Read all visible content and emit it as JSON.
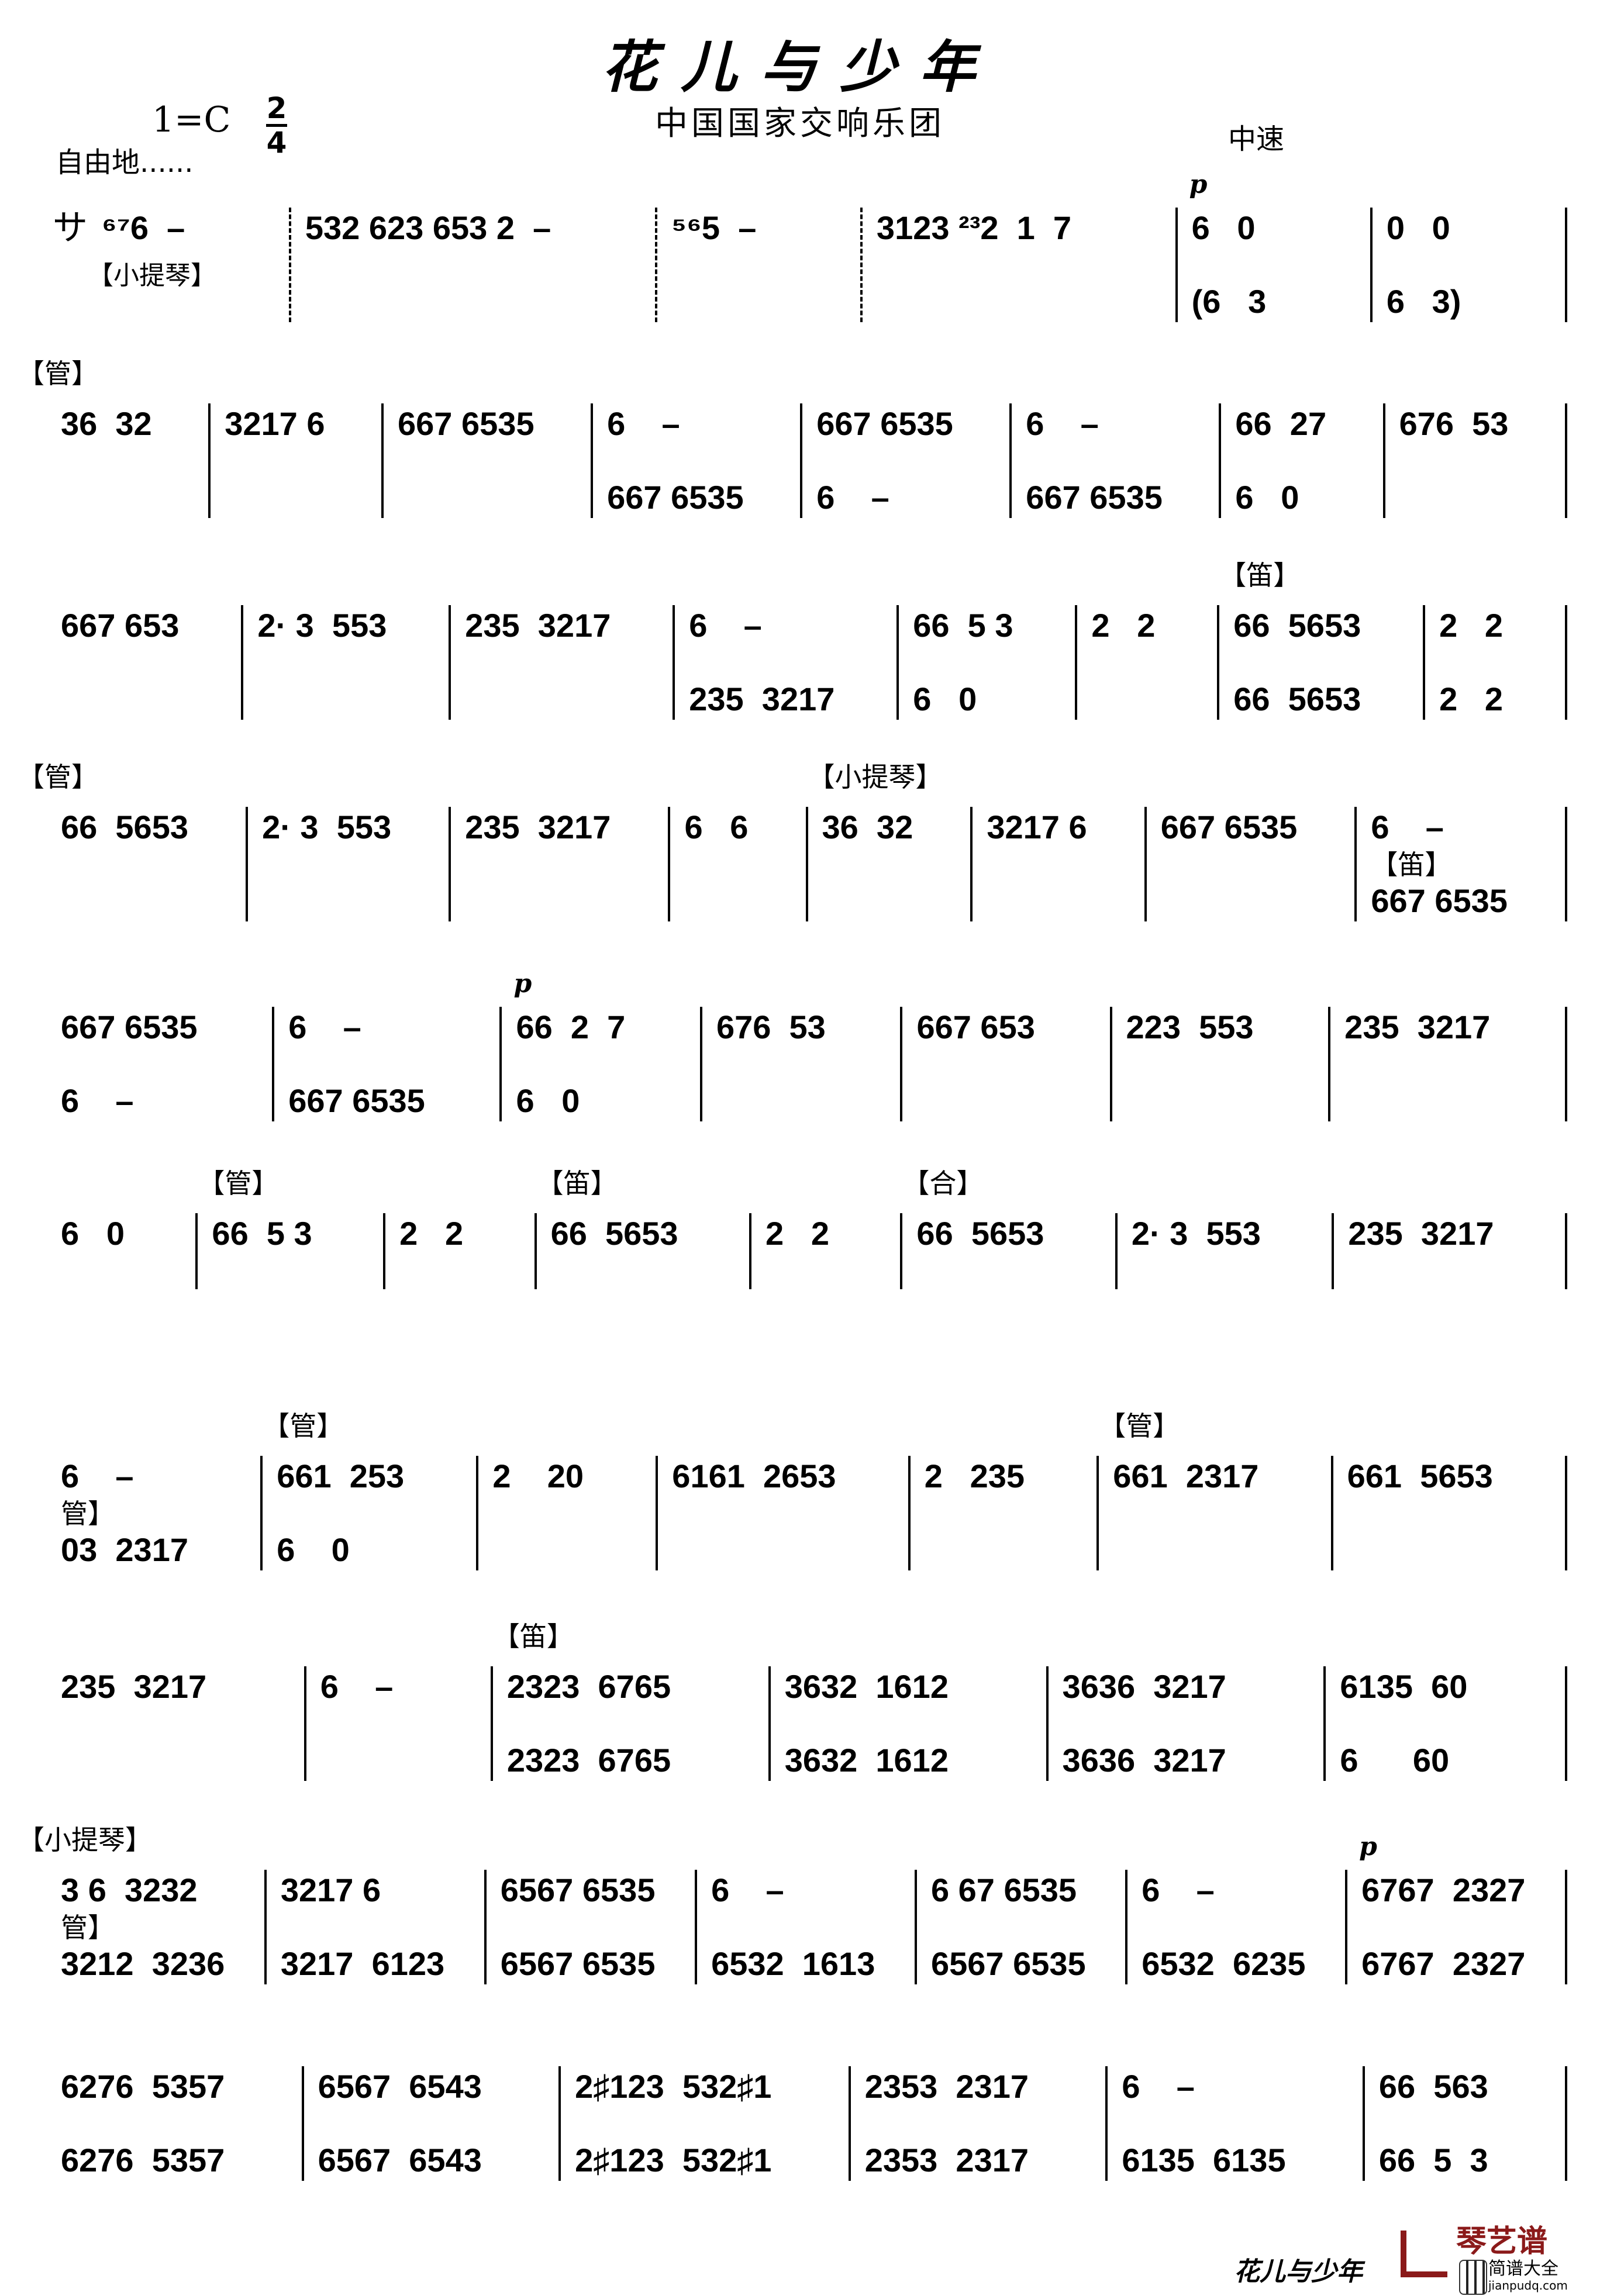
{
  "header": {
    "title": "花儿与少年",
    "composer": "中国国家交响乐团",
    "key": "1=C",
    "meter_top": "2",
    "meter_bottom": "4",
    "free_tempo": "自由地......",
    "tempo": "中速"
  },
  "intro": {
    "prefix": "サ",
    "instrument": "【小提琴】"
  },
  "systems": [
    {
      "measures": [
        {
          "upper": "⁶⁷6  –",
          "dashed": false
        },
        {
          "upper": "532 623 653 2  –",
          "dashed": true
        },
        {
          "upper": "⁵⁶5  –",
          "dashed": true
        },
        {
          "upper": "3123 ²³2  1  7",
          "dashed": true
        },
        {
          "upper": "6   0",
          "lower": "(6   3",
          "dyn": "p"
        },
        {
          "upper": "0   0",
          "lower": "6   3)"
        }
      ]
    },
    {
      "tag": "【管】",
      "measures": [
        {
          "upper": "36  32"
        },
        {
          "upper": "3217 6"
        },
        {
          "upper": "667 6535"
        },
        {
          "upper": "6    –",
          "lower": "667 6535"
        },
        {
          "upper": "667 6535",
          "lower": "6    –"
        },
        {
          "upper": "6    –",
          "lower": "667 6535"
        },
        {
          "upper": "66  27",
          "lower": "6   0"
        },
        {
          "upper": "676  53"
        }
      ]
    },
    {
      "measures": [
        {
          "upper": "667 653"
        },
        {
          "upper": "2· 3  553"
        },
        {
          "upper": "235  3217"
        },
        {
          "upper": "6    –",
          "lower": "235  3217"
        },
        {
          "upper": "66  5 3",
          "lower": "6   0"
        },
        {
          "upper": "2   2"
        },
        {
          "upper": "66  5653",
          "lower": "66  5653",
          "tag": "【笛】"
        },
        {
          "upper": "2   2",
          "lower": "2   2"
        }
      ]
    },
    {
      "tag": "【管】",
      "measures": [
        {
          "upper": "66  5653"
        },
        {
          "upper": "2· 3  553"
        },
        {
          "upper": "235  3217"
        },
        {
          "upper": "6   6"
        },
        {
          "upper": "36  32",
          "tag": "【小提琴】"
        },
        {
          "upper": "3217 6"
        },
        {
          "upper": "667 6535"
        },
        {
          "upper": "6    –",
          "lower": "667 6535",
          "lowtag": "【笛】"
        }
      ]
    },
    {
      "measures": [
        {
          "upper": "667 6535",
          "lower": "6    –"
        },
        {
          "upper": "6    –",
          "lower": "667 6535"
        },
        {
          "upper": "66  2  7",
          "lower": "6   0",
          "dyn": "p"
        },
        {
          "upper": "676  53"
        },
        {
          "upper": "667 653"
        },
        {
          "upper": "223  553"
        },
        {
          "upper": "235  3217"
        }
      ]
    },
    {
      "measures": [
        {
          "upper": "6   0"
        },
        {
          "upper": "66  5 3",
          "tag": "【管】"
        },
        {
          "upper": "2   2"
        },
        {
          "upper": "66  5653",
          "tag": "【笛】"
        },
        {
          "upper": "2   2"
        },
        {
          "upper": "66  5653",
          "tag": "【合】"
        },
        {
          "upper": "2· 3  553"
        },
        {
          "upper": "235  3217"
        }
      ]
    },
    {
      "measures": [
        {
          "upper": "6    –",
          "lower": "03  2317",
          "lowtag": "管】"
        },
        {
          "upper": "661  253",
          "lower": "6    0",
          "tag": "【管】"
        },
        {
          "upper": "2    20"
        },
        {
          "upper": "6161  2653"
        },
        {
          "upper": "2   235"
        },
        {
          "upper": "661  2317",
          "tag": "【管】"
        },
        {
          "upper": "661  5653"
        }
      ]
    },
    {
      "measures": [
        {
          "upper": "235  3217"
        },
        {
          "upper": "6    –"
        },
        {
          "upper": "2323  6765",
          "lower": "2323  6765",
          "tag": "【笛】"
        },
        {
          "upper": "3632  1612",
          "lower": "3632  1612"
        },
        {
          "upper": "3636  3217",
          "lower": "3636  3217"
        },
        {
          "upper": "6135  60",
          "lower": "6      60"
        }
      ]
    },
    {
      "tag": "【小提琴】",
      "measures": [
        {
          "upper": "3 6  3232",
          "lower": "3212  3236",
          "lowtag": "管】"
        },
        {
          "upper": "3217 6",
          "lower": "3217  6123"
        },
        {
          "upper": "6567 6535",
          "lower": "6567 6535"
        },
        {
          "upper": "6    –",
          "lower": "6532  1613"
        },
        {
          "upper": "6 67 6535",
          "lower": "6567 6535"
        },
        {
          "upper": "6    –",
          "lower": "6532  6235"
        },
        {
          "upper": "6767  2327",
          "lower": "6767  2327",
          "dyn": "p"
        }
      ]
    },
    {
      "measures": [
        {
          "upper": "6276  5357",
          "lower": "6276  5357"
        },
        {
          "upper": "6567  6543",
          "lower": "6567  6543"
        },
        {
          "upper": "2♯123  532♯1",
          "lower": "2♯123  532♯1"
        },
        {
          "upper": "2353  2317",
          "lower": "2353  2317"
        },
        {
          "upper": "6    –",
          "lower": "6135  6135"
        },
        {
          "upper": "66  563",
          "lower": "66  5  3"
        }
      ]
    }
  ],
  "footer": {
    "title": "花儿与少年",
    "logo_brand": "琴艺谱",
    "logo_sub": "简谱大全",
    "logo_url": "jianpudq.com",
    "logo_color": "#8b1a1a"
  }
}
